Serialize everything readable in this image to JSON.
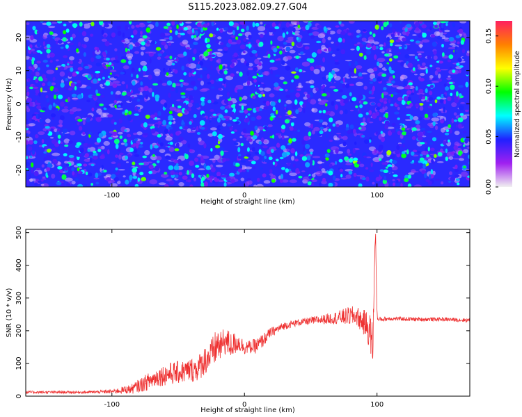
{
  "title": "S115.2023.082.09.27.G04",
  "chart_data": [
    {
      "type": "heatmap",
      "xlabel": "Height of straight line (km)",
      "ylabel": "Frequency (Hz)",
      "xlim": [
        -165,
        170
      ],
      "ylim": [
        -25,
        25
      ],
      "xticks": [
        -100,
        0,
        100
      ],
      "xtick_labels": [
        "-100",
        "0",
        "100"
      ],
      "yticks": [
        -20,
        -10,
        0,
        10,
        20
      ],
      "ytick_labels": [
        "-20",
        "-10",
        "0",
        "10",
        "20"
      ],
      "colorbar": {
        "label": "Normalized spectral amplitude",
        "range": [
          0,
          0.165
        ],
        "ticks": [
          0.0,
          0.05,
          0.1,
          0.15
        ],
        "tick_labels": [
          "0.00",
          "0.05",
          "0.10",
          "0.15"
        ],
        "colormap": [
          "#f0f0f0",
          "#a020f0",
          "#2020ff",
          "#00ffff",
          "#00ff00",
          "#ffff00",
          "#ff8000",
          "#ff2060"
        ]
      },
      "values_description_visible": "noise-like field, mostly 0.00–0.08, scattered spots up to ~0.10"
    },
    {
      "type": "line",
      "xlabel": "Height of straight line (km)",
      "ylabel": "SNR (10 * v/v)",
      "xlim": [
        -165,
        170
      ],
      "ylim": [
        0,
        510
      ],
      "xticks": [
        -100,
        0,
        100
      ],
      "xtick_labels": [
        "-100",
        "0",
        "100"
      ],
      "yticks": [
        0,
        100,
        200,
        300,
        400,
        500
      ],
      "ytick_labels": [
        "0",
        "100",
        "200",
        "300",
        "400",
        "500"
      ],
      "color": "#ee3030",
      "envelope": {
        "x": [
          -165,
          -150,
          -120,
          -100,
          -85,
          -75,
          -65,
          -55,
          -45,
          -35,
          -30,
          -25,
          -20,
          -18,
          -15,
          -10,
          -5,
          0,
          5,
          10,
          15,
          20,
          30,
          40,
          50,
          60,
          70,
          80,
          85,
          88,
          90,
          92,
          94,
          96,
          97,
          98,
          99,
          100,
          101,
          102,
          110,
          130,
          150,
          170
        ],
        "y": [
          12,
          12,
          12,
          14,
          22,
          40,
          60,
          70,
          75,
          85,
          110,
          125,
          160,
          150,
          170,
          155,
          165,
          150,
          150,
          155,
          175,
          195,
          215,
          225,
          230,
          235,
          240,
          245,
          245,
          230,
          225,
          220,
          200,
          180,
          140,
          420,
          480,
          250,
          230,
          235,
          237,
          235,
          235,
          232
        ],
        "noise": [
          4,
          4,
          4,
          6,
          15,
          25,
          30,
          35,
          35,
          40,
          45,
          50,
          55,
          45,
          45,
          40,
          30,
          22,
          20,
          25,
          20,
          15,
          12,
          10,
          12,
          15,
          20,
          30,
          30,
          35,
          40,
          40,
          55,
          70,
          80,
          40,
          30,
          10,
          8,
          8,
          6,
          6,
          6,
          6
        ]
      }
    }
  ]
}
